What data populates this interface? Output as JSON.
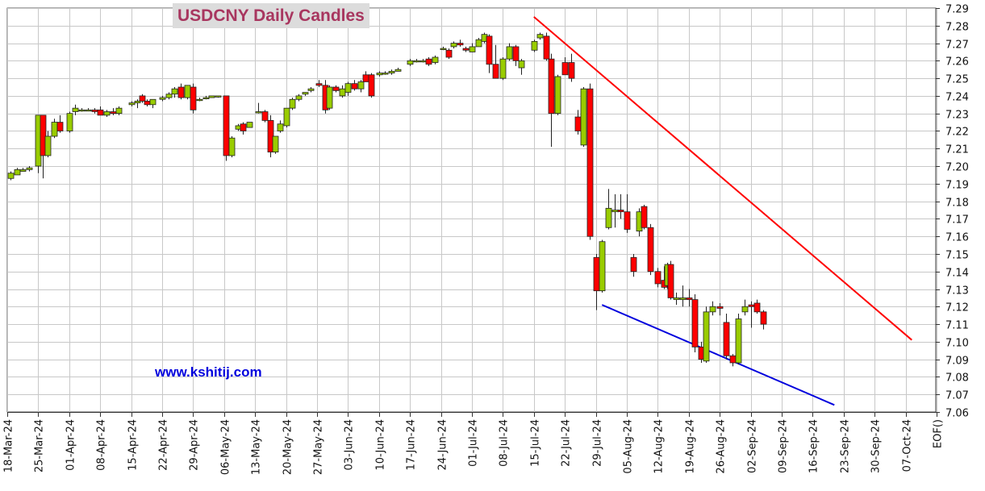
{
  "chart_data": {
    "type": "candlestick",
    "title": "USDCNY Daily Candles",
    "watermark": "www.kshitij.com",
    "ylim": [
      7.06,
      7.29
    ],
    "y_tick_step": 0.01,
    "x_tick_labels": [
      "18-Mar-24",
      "25-Mar-24",
      "01-Apr-24",
      "08-Apr-24",
      "15-Apr-24",
      "22-Apr-24",
      "29-Apr-24",
      "06-May-24",
      "13-May-24",
      "20-May-24",
      "27-May-24",
      "03-Jun-24",
      "10-Jun-24",
      "17-Jun-24",
      "24-Jun-24",
      "01-Jul-24",
      "08-Jul-24",
      "15-Jul-24",
      "22-Jul-24",
      "29-Jul-24",
      "05-Aug-24",
      "12-Aug-24",
      "19-Aug-24",
      "26-Aug-24",
      "02-Sep-24",
      "09-Sep-24",
      "16-Sep-24",
      "23-Sep-24",
      "30-Sep-24",
      "07-Oct-24",
      "EOF()"
    ],
    "grid": true,
    "up_color": "#99cc00",
    "down_color": "#ff0000",
    "candles": [
      [
        0.1,
        7.193,
        7.197,
        7.192,
        7.196
      ],
      [
        0.3,
        7.195,
        7.199,
        7.195,
        7.198
      ],
      [
        0.5,
        7.197,
        7.199,
        7.197,
        7.198
      ],
      [
        0.7,
        7.198,
        7.2,
        7.197,
        7.199
      ],
      [
        1.0,
        7.2,
        7.229,
        7.196,
        7.229
      ],
      [
        1.15,
        7.229,
        7.229,
        7.193,
        7.206
      ],
      [
        1.3,
        7.206,
        7.22,
        7.205,
        7.217
      ],
      [
        1.5,
        7.217,
        7.227,
        7.216,
        7.225
      ],
      [
        1.7,
        7.225,
        7.229,
        7.219,
        7.22
      ],
      [
        2.0,
        7.22,
        7.231,
        7.219,
        7.23
      ],
      [
        2.2,
        7.231,
        7.235,
        7.229,
        7.233
      ],
      [
        2.4,
        7.232,
        7.233,
        7.231,
        7.232
      ],
      [
        2.6,
        7.232,
        7.233,
        7.232,
        7.232
      ],
      [
        2.8,
        7.232,
        7.233,
        7.23,
        7.231
      ],
      [
        3.0,
        7.232,
        7.234,
        7.229,
        7.229
      ],
      [
        3.2,
        7.229,
        7.232,
        7.228,
        7.231
      ],
      [
        3.4,
        7.231,
        7.233,
        7.229,
        7.23
      ],
      [
        3.6,
        7.23,
        7.234,
        7.229,
        7.233
      ],
      [
        4.0,
        7.235,
        7.237,
        7.234,
        7.236
      ],
      [
        4.2,
        7.236,
        7.238,
        7.233,
        7.237
      ],
      [
        4.35,
        7.24,
        7.241,
        7.236,
        7.237
      ],
      [
        4.5,
        7.237,
        7.238,
        7.234,
        7.235
      ],
      [
        4.7,
        7.235,
        7.238,
        7.233,
        7.238
      ],
      [
        5.0,
        7.238,
        7.24,
        7.237,
        7.239
      ],
      [
        5.2,
        7.239,
        7.242,
        7.238,
        7.241
      ],
      [
        5.4,
        7.241,
        7.245,
        7.239,
        7.244
      ],
      [
        5.6,
        7.245,
        7.247,
        7.238,
        7.239
      ],
      [
        5.8,
        7.239,
        7.246,
        7.238,
        7.246
      ],
      [
        6.0,
        7.245,
        7.247,
        7.23,
        7.232
      ],
      [
        6.2,
        7.238,
        7.239,
        7.237,
        7.238
      ],
      [
        6.4,
        7.239,
        7.24,
        7.238,
        7.239
      ],
      [
        6.6,
        7.239,
        7.24,
        7.239,
        7.24
      ],
      [
        6.8,
        7.24,
        7.24,
        7.239,
        7.24
      ],
      [
        7.05,
        7.24,
        7.24,
        7.203,
        7.206
      ],
      [
        7.25,
        7.206,
        7.217,
        7.205,
        7.216
      ],
      [
        7.45,
        7.221,
        7.224,
        7.22,
        7.223
      ],
      [
        7.6,
        7.224,
        7.225,
        7.218,
        7.22
      ],
      [
        7.8,
        7.222,
        7.225,
        7.222,
        7.225
      ],
      [
        8.1,
        7.231,
        7.236,
        7.23,
        7.231
      ],
      [
        8.3,
        7.231,
        7.232,
        7.225,
        7.226
      ],
      [
        8.5,
        7.226,
        7.229,
        7.205,
        7.208
      ],
      [
        8.65,
        7.208,
        7.217,
        7.207,
        7.217
      ],
      [
        8.8,
        7.22,
        7.226,
        7.219,
        7.224
      ],
      [
        9.0,
        7.223,
        7.233,
        7.222,
        7.233
      ],
      [
        9.2,
        7.233,
        7.239,
        7.232,
        7.238
      ],
      [
        9.4,
        7.238,
        7.241,
        7.237,
        7.24
      ],
      [
        9.6,
        7.241,
        7.242,
        7.24,
        7.242
      ],
      [
        9.8,
        7.243,
        7.245,
        7.242,
        7.244
      ],
      [
        10.05,
        7.247,
        7.249,
        7.245,
        7.246
      ],
      [
        10.25,
        7.246,
        7.249,
        7.23,
        7.232
      ],
      [
        10.4,
        7.233,
        7.246,
        7.232,
        7.245
      ],
      [
        10.6,
        7.245,
        7.246,
        7.242,
        7.243
      ],
      [
        10.8,
        7.24,
        7.246,
        7.239,
        7.244
      ],
      [
        11.0,
        7.242,
        7.248,
        7.24,
        7.247
      ],
      [
        11.2,
        7.247,
        7.249,
        7.243,
        7.244
      ],
      [
        11.4,
        7.244,
        7.249,
        7.242,
        7.248
      ],
      [
        11.55,
        7.252,
        7.254,
        7.248,
        7.248
      ],
      [
        11.75,
        7.252,
        7.253,
        7.239,
        7.24
      ],
      [
        12.0,
        7.252,
        7.254,
        7.251,
        7.253
      ],
      [
        12.2,
        7.253,
        7.254,
        7.252,
        7.253
      ],
      [
        12.4,
        7.253,
        7.255,
        7.252,
        7.254
      ],
      [
        12.6,
        7.254,
        7.256,
        7.254,
        7.255
      ],
      [
        13.0,
        7.258,
        7.261,
        7.257,
        7.26
      ],
      [
        13.2,
        7.26,
        7.261,
        7.259,
        7.26
      ],
      [
        13.4,
        7.26,
        7.261,
        7.259,
        7.26
      ],
      [
        13.6,
        7.261,
        7.262,
        7.257,
        7.258
      ],
      [
        13.8,
        7.259,
        7.263,
        7.258,
        7.262
      ],
      [
        14.05,
        7.267,
        7.268,
        7.266,
        7.267
      ],
      [
        14.25,
        7.266,
        7.267,
        7.261,
        7.262
      ],
      [
        14.4,
        7.268,
        7.271,
        7.267,
        7.27
      ],
      [
        14.6,
        7.27,
        7.272,
        7.268,
        7.269
      ],
      [
        14.8,
        7.267,
        7.268,
        7.265,
        7.266
      ],
      [
        15.0,
        7.265,
        7.27,
        7.265,
        7.268
      ],
      [
        15.2,
        7.268,
        7.273,
        7.268,
        7.272
      ],
      [
        15.4,
        7.271,
        7.276,
        7.27,
        7.275
      ],
      [
        15.55,
        7.274,
        7.275,
        7.253,
        7.258
      ],
      [
        15.75,
        7.258,
        7.269,
        7.25,
        7.25
      ],
      [
        16.0,
        7.25,
        7.262,
        7.249,
        7.261
      ],
      [
        16.2,
        7.261,
        7.27,
        7.26,
        7.268
      ],
      [
        16.4,
        7.268,
        7.269,
        7.257,
        7.26
      ],
      [
        16.6,
        7.256,
        7.261,
        7.252,
        7.26
      ],
      [
        17.0,
        7.266,
        7.272,
        7.265,
        7.271
      ],
      [
        17.2,
        7.273,
        7.276,
        7.272,
        7.275
      ],
      [
        17.4,
        7.274,
        7.276,
        7.26,
        7.261
      ],
      [
        17.55,
        7.261,
        7.264,
        7.211,
        7.23
      ],
      [
        17.75,
        7.23,
        7.252,
        7.229,
        7.251
      ],
      [
        18.0,
        7.259,
        7.262,
        7.252,
        7.252
      ],
      [
        18.2,
        7.259,
        7.264,
        7.248,
        7.25
      ],
      [
        18.4,
        7.228,
        7.232,
        7.218,
        7.22
      ],
      [
        18.6,
        7.212,
        7.245,
        7.211,
        7.244
      ],
      [
        18.8,
        7.244,
        7.247,
        7.158,
        7.16
      ],
      [
        19.0,
        7.148,
        7.15,
        7.118,
        7.129
      ],
      [
        19.2,
        7.129,
        7.158,
        7.128,
        7.157
      ],
      [
        19.4,
        7.165,
        7.187,
        7.164,
        7.176
      ],
      [
        19.6,
        7.174,
        7.184,
        7.165,
        7.175
      ],
      [
        19.8,
        7.175,
        7.184,
        7.17,
        7.174
      ],
      [
        20.0,
        7.174,
        7.184,
        7.162,
        7.164
      ],
      [
        20.2,
        7.148,
        7.15,
        7.137,
        7.14
      ],
      [
        20.4,
        7.163,
        7.176,
        7.16,
        7.174
      ],
      [
        20.55,
        7.177,
        7.178,
        7.164,
        7.165
      ],
      [
        20.75,
        7.165,
        7.167,
        7.138,
        7.14
      ],
      [
        21.0,
        7.14,
        7.142,
        7.131,
        7.133
      ],
      [
        21.2,
        7.135,
        7.143,
        7.13,
        7.131
      ],
      [
        21.3,
        7.132,
        7.145,
        7.13,
        7.144
      ],
      [
        21.4,
        7.144,
        7.146,
        7.124,
        7.125
      ],
      [
        21.6,
        7.124,
        7.128,
        7.121,
        7.125
      ],
      [
        21.8,
        7.124,
        7.132,
        7.12,
        7.125
      ],
      [
        22.0,
        7.125,
        7.13,
        7.12,
        7.124
      ],
      [
        22.2,
        7.124,
        7.127,
        7.094,
        7.097
      ],
      [
        22.4,
        7.097,
        7.1,
        7.088,
        7.09
      ],
      [
        22.55,
        7.089,
        7.12,
        7.088,
        7.117
      ],
      [
        22.75,
        7.117,
        7.123,
        7.115,
        7.12
      ],
      [
        23.0,
        7.12,
        7.122,
        7.115,
        7.119
      ],
      [
        23.2,
        7.111,
        7.116,
        7.09,
        7.092
      ],
      [
        23.4,
        7.092,
        7.093,
        7.086,
        7.088
      ],
      [
        23.6,
        7.088,
        7.116,
        7.087,
        7.113
      ],
      [
        23.8,
        7.117,
        7.124,
        7.115,
        7.12
      ],
      [
        24.0,
        7.121,
        7.123,
        7.108,
        7.12
      ],
      [
        24.2,
        7.122,
        7.124,
        7.116,
        7.117
      ],
      [
        24.4,
        7.117,
        7.118,
        7.107,
        7.11
      ]
    ],
    "trendlines": [
      {
        "color": "#ff0000",
        "from": [
          17.0,
          7.285
        ],
        "to": [
          29.2,
          7.101
        ]
      },
      {
        "color": "#0000dd",
        "from": [
          19.2,
          7.121
        ],
        "to": [
          26.7,
          7.064
        ]
      }
    ]
  }
}
